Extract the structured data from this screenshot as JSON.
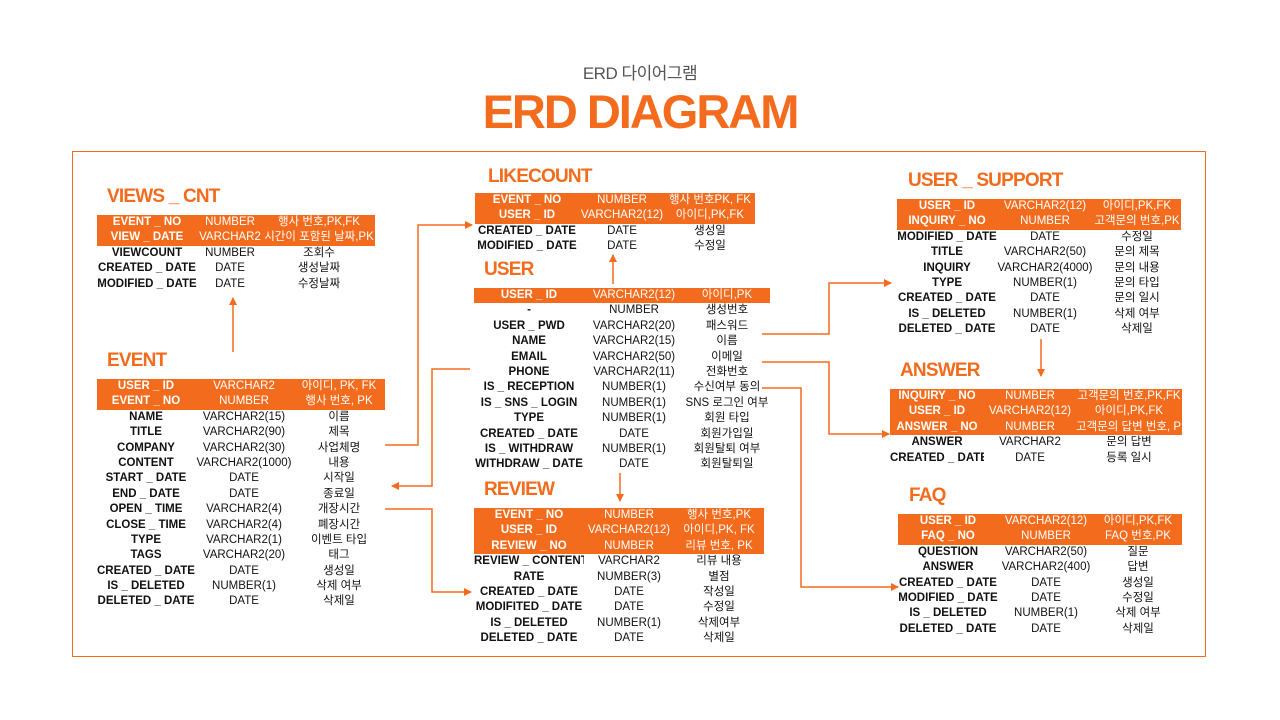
{
  "header": {
    "subtitle": "ERD 다이어그램",
    "title": "ERD DIAGRAM"
  },
  "colors": {
    "accent": "#f36b1c",
    "text": "#111111",
    "background": "#ffffff"
  },
  "tables": {
    "views_cnt": {
      "name": "VIEWS _ CNT",
      "rows": [
        {
          "key": true,
          "cols": [
            "EVENT _ NO",
            "NUMBER",
            "행사 번호,PK,FK"
          ]
        },
        {
          "key": true,
          "cols": [
            "VIEW _ DATE",
            "VARCHAR2",
            "시간이 포함된 날짜,PK"
          ]
        },
        {
          "key": false,
          "cols": [
            "VIEWCOUNT",
            "NUMBER",
            "조회수"
          ]
        },
        {
          "key": false,
          "cols": [
            "CREATED _ DATE",
            "DATE",
            "생성날짜"
          ]
        },
        {
          "key": false,
          "cols": [
            "MODIFIED _ DATE",
            "DATE",
            "수정날짜"
          ]
        }
      ]
    },
    "event": {
      "name": "EVENT",
      "rows": [
        {
          "key": true,
          "cols": [
            "USER _ ID",
            "VARCHAR2",
            "아이디, PK, FK"
          ]
        },
        {
          "key": true,
          "cols": [
            "EVENT _ NO",
            "NUMBER",
            "행사 번호, PK"
          ]
        },
        {
          "key": false,
          "cols": [
            "NAME",
            "VARCHAR2(15)",
            "이름"
          ]
        },
        {
          "key": false,
          "cols": [
            "TITLE",
            "VARCHAR2(90)",
            "제목"
          ]
        },
        {
          "key": false,
          "cols": [
            "COMPANY",
            "VARCHAR2(30)",
            "사업체명"
          ]
        },
        {
          "key": false,
          "cols": [
            "CONTENT",
            "VARCHAR2(1000)",
            "내용"
          ]
        },
        {
          "key": false,
          "cols": [
            "START _ DATE",
            "DATE",
            "시작일"
          ]
        },
        {
          "key": false,
          "cols": [
            "END _ DATE",
            "DATE",
            "종료일"
          ]
        },
        {
          "key": false,
          "cols": [
            "OPEN _ TIME",
            "VARCHAR2(4)",
            "개장시간"
          ]
        },
        {
          "key": false,
          "cols": [
            "CLOSE _ TIME",
            "VARCHAR2(4)",
            "폐장시간"
          ]
        },
        {
          "key": false,
          "cols": [
            "TYPE",
            "VARCHAR2(1)",
            "이벤트 타입"
          ]
        },
        {
          "key": false,
          "cols": [
            "TAGS",
            "VARCHAR2(20)",
            "태그"
          ]
        },
        {
          "key": false,
          "cols": [
            "CREATED _ DATE",
            "DATE",
            "생성일"
          ]
        },
        {
          "key": false,
          "cols": [
            "IS _ DELETED",
            "NUMBER(1)",
            "삭제 여부"
          ]
        },
        {
          "key": false,
          "cols": [
            "DELETED _ DATE",
            "DATE",
            "삭제일"
          ]
        }
      ]
    },
    "likecount": {
      "name": "LIKECOUNT",
      "rows": [
        {
          "key": true,
          "cols": [
            "EVENT _ NO",
            "NUMBER",
            "행사 번호PK, FK"
          ]
        },
        {
          "key": true,
          "cols": [
            "USER _ ID",
            "VARCHAR2(12)",
            "아이디,PK,FK"
          ]
        },
        {
          "key": false,
          "cols": [
            "CREATED _ DATE",
            "DATE",
            "생성일"
          ]
        },
        {
          "key": false,
          "cols": [
            "MODIFIED _ DATE",
            "DATE",
            "수정일"
          ]
        }
      ]
    },
    "user": {
      "name": "USER",
      "rows": [
        {
          "key": true,
          "cols": [
            "USER _ ID",
            "VARCHAR2(12)",
            "아이디,PK"
          ]
        },
        {
          "key": false,
          "cols": [
            "-",
            "NUMBER",
            "생성번호"
          ]
        },
        {
          "key": false,
          "cols": [
            "USER _ PWD",
            "VARCHAR2(20)",
            "패스워드"
          ]
        },
        {
          "key": false,
          "cols": [
            "NAME",
            "VARCHAR2(15)",
            "이름"
          ]
        },
        {
          "key": false,
          "cols": [
            "EMAIL",
            "VARCHAR2(50)",
            "이메일"
          ]
        },
        {
          "key": false,
          "cols": [
            "PHONE",
            "VARCHAR2(11)",
            "전화번호"
          ]
        },
        {
          "key": false,
          "cols": [
            "IS _ RECEPTION",
            "NUMBER(1)",
            "수신여부 동의"
          ]
        },
        {
          "key": false,
          "cols": [
            "IS _ SNS _ LOGIN",
            "NUMBER(1)",
            "SNS 로그인 여부"
          ]
        },
        {
          "key": false,
          "cols": [
            "TYPE",
            "NUMBER(1)",
            "회원 타입"
          ]
        },
        {
          "key": false,
          "cols": [
            "CREATED _ DATE",
            "DATE",
            "회원가입일"
          ]
        },
        {
          "key": false,
          "cols": [
            "IS _ WITHDRAW",
            "NUMBER(1)",
            "회원탈퇴 여부"
          ]
        },
        {
          "key": false,
          "cols": [
            "WITHDRAW _ DATE",
            "DATE",
            "회원탈퇴일"
          ]
        }
      ]
    },
    "review": {
      "name": "REVIEW",
      "rows": [
        {
          "key": true,
          "cols": [
            "EVENT _ NO",
            "NUMBER",
            "행사 번호,PK"
          ]
        },
        {
          "key": true,
          "cols": [
            "USER _ ID",
            "VARCHAR2(12)",
            "아이디,PK, FK"
          ]
        },
        {
          "key": true,
          "cols": [
            "REVIEW _ NO",
            "NUMBER",
            "리뷰 번호, PK"
          ]
        },
        {
          "key": false,
          "cols": [
            "REVIEW _ CONTENT",
            "VARCHAR2",
            "리뷰 내용"
          ]
        },
        {
          "key": false,
          "cols": [
            "RATE",
            "NUMBER(3)",
            "별점"
          ]
        },
        {
          "key": false,
          "cols": [
            "CREATED _ DATE",
            "DATE",
            "작성일"
          ]
        },
        {
          "key": false,
          "cols": [
            "MODIFITED _ DATE",
            "DATE",
            "수정일"
          ]
        },
        {
          "key": false,
          "cols": [
            "IS _ DELETED",
            "NUMBER(1)",
            "삭제여부"
          ]
        },
        {
          "key": false,
          "cols": [
            "DELETED _ DATE",
            "DATE",
            "삭제일"
          ]
        }
      ]
    },
    "user_support": {
      "name": "USER _ SUPPORT",
      "rows": [
        {
          "key": true,
          "cols": [
            "USER _ ID",
            "VARCHAR2(12)",
            "아이디,PK,FK"
          ]
        },
        {
          "key": true,
          "cols": [
            "INQUIRY _ NO",
            "NUMBER",
            "고객문의 번호,PK"
          ]
        },
        {
          "key": false,
          "cols": [
            "MODIFIED _ DATE",
            "DATE",
            "수정일"
          ]
        },
        {
          "key": false,
          "cols": [
            "TITLE",
            "VARCHAR2(50)",
            "문의 제목"
          ]
        },
        {
          "key": false,
          "cols": [
            "INQUIRY",
            "VARCHAR2(4000)",
            "문의 내용"
          ]
        },
        {
          "key": false,
          "cols": [
            "TYPE",
            "NUMBER(1)",
            "문의 타입"
          ]
        },
        {
          "key": false,
          "cols": [
            "CREATED _ DATE",
            "DATE",
            "문의 일시"
          ]
        },
        {
          "key": false,
          "cols": [
            "IS _ DELETED",
            "NUMBER(1)",
            "삭제 여부"
          ]
        },
        {
          "key": false,
          "cols": [
            "DELETED _ DATE",
            "DATE",
            "삭제일"
          ]
        }
      ]
    },
    "answer": {
      "name": "ANSWER",
      "rows": [
        {
          "key": true,
          "cols": [
            "INQUIRY _ NO",
            "NUMBER",
            "고객문의 번호,PK,FK"
          ]
        },
        {
          "key": true,
          "cols": [
            "USER _ ID",
            "VARCHAR2(12)",
            "아이디,PK,FK"
          ]
        },
        {
          "key": true,
          "cols": [
            "ANSWER _ NO",
            "NUMBER",
            "고객문의 답변 번호, PK"
          ]
        },
        {
          "key": false,
          "cols": [
            "ANSWER",
            "VARCHAR2",
            "문의 답변"
          ]
        },
        {
          "key": false,
          "cols": [
            "CREATED _ DATE",
            "DATE",
            "등록 일시"
          ]
        }
      ]
    },
    "faq": {
      "name": "FAQ",
      "rows": [
        {
          "key": true,
          "cols": [
            "USER _ ID",
            "VARCHAR2(12)",
            "아이디,PK,FK"
          ]
        },
        {
          "key": true,
          "cols": [
            "FAQ _ NO",
            "NUMBER",
            "FAQ 번호,PK"
          ]
        },
        {
          "key": false,
          "cols": [
            "QUESTION",
            "VARCHAR2(50)",
            "질문"
          ]
        },
        {
          "key": false,
          "cols": [
            "ANSWER",
            "VARCHAR2(400)",
            "답변"
          ]
        },
        {
          "key": false,
          "cols": [
            "CREATED _ DATE",
            "DATE",
            "생성일"
          ]
        },
        {
          "key": false,
          "cols": [
            "MODIFIED _ DATE",
            "DATE",
            "수정일"
          ]
        },
        {
          "key": false,
          "cols": [
            "IS _ DELETED",
            "NUMBER(1)",
            "삭제 여부"
          ]
        },
        {
          "key": false,
          "cols": [
            "DELETED _ DATE",
            "DATE",
            "삭제일"
          ]
        }
      ]
    }
  }
}
